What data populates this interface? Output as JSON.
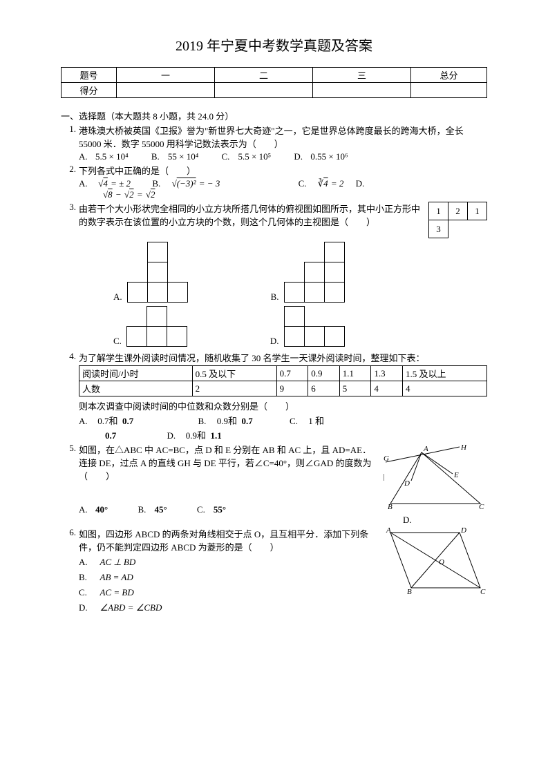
{
  "title": "2019 年宁夏中考数学真题及答案",
  "score_table": {
    "row1": {
      "hdr": "题号",
      "c1": "一",
      "c2": "二",
      "c3": "三",
      "total": "总分"
    },
    "row2": {
      "hdr": "得分",
      "c1": "",
      "c2": "",
      "c3": "",
      "total": ""
    }
  },
  "section1_header": "一、选择题（本大题共 8 小题，共 24.0 分）",
  "q1": {
    "num": "1.",
    "text": "港珠澳大桥被英国《卫报》誉为\"新世界七大奇迹\"之一，它是世界总体跨度最长的跨海大桥，全长 55000 米．数字 55000 用科学记数法表示为（　　）",
    "A": "5.5 × 10⁴",
    "B": "55 × 10⁴",
    "C": "5.5 × 10⁵",
    "D": "0.55 × 10⁶"
  },
  "q2": {
    "num": "2.",
    "text": "下列各式中正确的是（　　）",
    "A_math": "√4 = ± 2",
    "B_math": "√(−3)² = − 3",
    "C_math": "∛4 = 2",
    "D_math": "√8 − √2 = √2"
  },
  "q3": {
    "num": "3.",
    "text_before": "由若干个大小形状完全相同的小立方块所搭几何体的俯视图如图所示，其中小正方形中的数字表示在该位置的小立方块的个数，则这个几何体的主视图是（　　）",
    "topview": [
      [
        "1",
        "2",
        "1"
      ],
      [
        "3",
        "",
        ""
      ]
    ],
    "optA": "A.",
    "optB": "B.",
    "optC": "C.",
    "optD": "D.",
    "figs": {
      "A": [
        [
          0,
          1,
          0
        ],
        [
          0,
          1,
          0
        ],
        [
          1,
          1,
          1
        ]
      ],
      "B": [
        [
          0,
          0,
          1
        ],
        [
          0,
          1,
          1
        ],
        [
          1,
          1,
          1
        ]
      ],
      "C": [
        [
          0,
          1,
          0
        ],
        [
          1,
          1,
          1
        ]
      ],
      "D": [
        [
          1,
          0,
          0
        ],
        [
          1,
          1,
          1
        ]
      ]
    }
  },
  "q4": {
    "num": "4.",
    "text": "为了解学生课外阅读时间情况，随机收集了 30 名学生一天课外阅读时间，整理如下表：",
    "table": {
      "header": [
        "阅读时间/小时",
        "0.5 及以下",
        "0.7",
        "0.9",
        "1.1",
        "1.3",
        "1.5 及以上"
      ],
      "row": [
        "人数",
        "2",
        "9",
        "6",
        "5",
        "4",
        "4"
      ]
    },
    "text2": "则本次调查中阅读时间的中位数和众数分别是（　　）",
    "A1": "0.7和",
    "A2": "0.7",
    "B1": "0.9和",
    "B2": "0.7",
    "C": "1 和",
    "C2": "0.7",
    "D1": "0.9和",
    "D2": "1.1"
  },
  "q5": {
    "num": "5.",
    "text": "如图，在△ABC 中 AC=BC，点 D 和 E 分别在 AB 和 AC 上，且 AD=AE．连接 DE，过点 A 的直线 GH 与 DE 平行，若∠C=40°，则∠GAD 的度数为（　　）",
    "A": "40°",
    "B": "45°",
    "C": "55°",
    "D": "",
    "D_label": "D."
  },
  "q6": {
    "num": "6.",
    "text": "如图，四边形 ABCD 的两条对角线相交于点 O，且互相平分．添加下列条件，仍不能判定四边形 ABCD 为菱形的是（　　）",
    "A": "AC ⊥ BD",
    "B": "AB = AD",
    "C": "AC = BD",
    "D": "∠ABD = ∠CBD"
  },
  "labels": {
    "A": "A.",
    "B": "B.",
    "C": "C.",
    "D": "D."
  }
}
